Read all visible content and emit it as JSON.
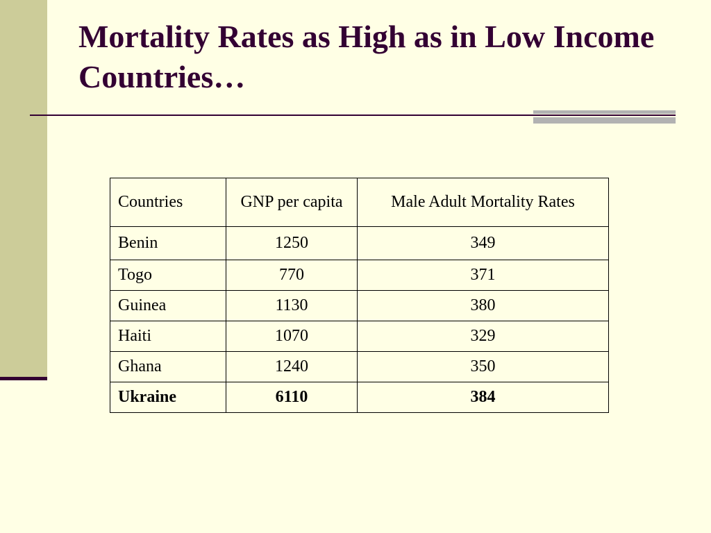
{
  "slide": {
    "title": "Mortality Rates as High as in Low Income Countries…"
  },
  "table": {
    "columns": [
      "Countries",
      "GNP per capita",
      "Male Adult Mortality Rates"
    ],
    "rows": [
      {
        "country": "Benin",
        "gnp": "1250",
        "mortality": "349"
      },
      {
        "country": "Togo",
        "gnp": "770",
        "mortality": "371"
      },
      {
        "country": "Guinea",
        "gnp": "1130",
        "mortality": "380"
      },
      {
        "country": "Haiti",
        "gnp": "1070",
        "mortality": "329"
      },
      {
        "country": "Ghana",
        "gnp": "1240",
        "mortality": "350"
      },
      {
        "country": "Ukraine",
        "gnp": "6110",
        "mortality": "384",
        "bold": true
      }
    ]
  },
  "colors": {
    "background": "#ffffe5",
    "sidebar": "#cccc99",
    "title_text": "#330033",
    "rule": "#330033",
    "accent": "#b2b2b2"
  }
}
